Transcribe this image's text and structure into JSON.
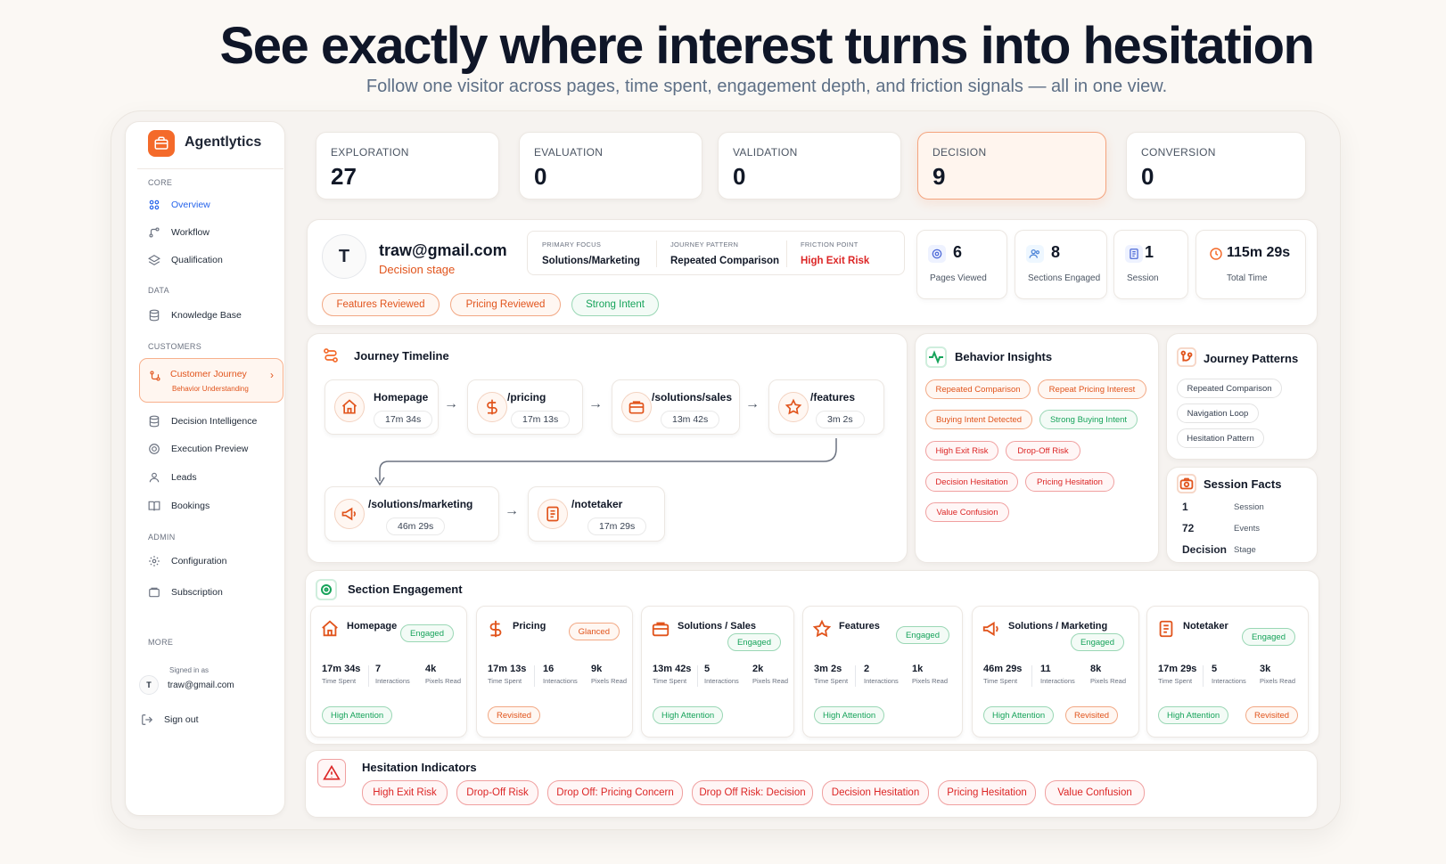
{
  "hero": {
    "title": "See exactly where interest turns into hesitation",
    "subtitle": "Follow one visitor across pages, time spent, engagement depth, and friction signals — all in one view."
  },
  "sidebar": {
    "brand": "Agentlytics",
    "sections": {
      "core": "CORE",
      "data": "DATA",
      "customers": "CUSTOMERS",
      "admin": "ADMIN",
      "more": "MORE"
    },
    "items": {
      "overview": "Overview",
      "workflow": "Workflow",
      "qualification": "Qualification",
      "knowledge_base": "Knowledge Base",
      "customer_journey": "Customer Journey",
      "customer_journey_sub": "Behavior Understanding",
      "decision_intelligence": "Decision Intelligence",
      "execution_preview": "Execution Preview",
      "leads": "Leads",
      "bookings": "Bookings",
      "configuration": "Configuration",
      "subscription": "Subscription"
    },
    "signed_in_label": "Signed in as",
    "user_initial": "T",
    "user_email": "traw@gmail.com",
    "sign_out": "Sign out"
  },
  "stages": [
    {
      "label": "EXPLORATION",
      "value": "27"
    },
    {
      "label": "EVALUATION",
      "value": "0"
    },
    {
      "label": "VALIDATION",
      "value": "0"
    },
    {
      "label": "DECISION",
      "value": "9"
    },
    {
      "label": "CONVERSION",
      "value": "0"
    }
  ],
  "profile": {
    "initial": "T",
    "email": "traw@gmail.com",
    "stage": "Decision stage",
    "primary_focus_label": "PRIMARY FOCUS",
    "primary_focus": "Solutions/Marketing",
    "journey_pattern_label": "JOURNEY PATTERN",
    "journey_pattern": "Repeated Comparison",
    "friction_point_label": "FRICTION POINT",
    "friction_point": "High Exit Risk",
    "tags": [
      "Features Reviewed",
      "Pricing Reviewed",
      "Strong Intent"
    ]
  },
  "kpis": [
    {
      "value": "6",
      "label": "Pages Viewed",
      "icon": "eye-icon"
    },
    {
      "value": "8",
      "label": "Sections Engaged",
      "icon": "users-icon"
    },
    {
      "value": "1",
      "label": "Session",
      "icon": "document-icon"
    },
    {
      "value": "115m 29s",
      "label": "Total Time",
      "icon": "clock-icon"
    }
  ],
  "timeline": {
    "title": "Journey Timeline",
    "nodes": [
      {
        "name": "Homepage",
        "time": "17m 34s",
        "icon": "home-icon"
      },
      {
        "name": "/pricing",
        "time": "17m 13s",
        "icon": "dollar-icon"
      },
      {
        "name": "/solutions/sales",
        "time": "13m 42s",
        "icon": "briefcase-icon"
      },
      {
        "name": "/features",
        "time": "3m 2s",
        "icon": "star-icon"
      },
      {
        "name": "/solutions/marketing",
        "time": "46m 29s",
        "icon": "megaphone-icon"
      },
      {
        "name": "/notetaker",
        "time": "17m 29s",
        "icon": "notes-icon"
      }
    ]
  },
  "behavior": {
    "title": "Behavior Insights",
    "pills": [
      "Repeated Comparison",
      "Repeat Pricing Interest",
      "Buying Intent Detected",
      "Strong Buying Intent",
      "High Exit Risk",
      "Drop-Off Risk",
      "Decision Hesitation",
      "Pricing Hesitation",
      "Value Confusion"
    ]
  },
  "patterns": {
    "title": "Journey Patterns",
    "items": [
      "Repeated Comparison",
      "Navigation Loop",
      "Hesitation Pattern"
    ]
  },
  "facts": {
    "title": "Session Facts",
    "rows": [
      {
        "value": "1",
        "label": "Session"
      },
      {
        "value": "72",
        "label": "Events"
      },
      {
        "value": "Decision",
        "label": "Stage"
      }
    ]
  },
  "engagement": {
    "title": "Section Engagement",
    "stat_labels": {
      "time": "Time Spent",
      "interactions": "Interactions",
      "pixels": "Pixels Read"
    },
    "cards": [
      {
        "name": "Homepage",
        "status": "Engaged",
        "time": "17m 34s",
        "interactions": "7",
        "pixels": "4k",
        "tags": [
          "High Attention"
        ],
        "icon": "home-icon"
      },
      {
        "name": "Pricing",
        "status": "Glanced",
        "time": "17m 13s",
        "interactions": "16",
        "pixels": "9k",
        "tags": [
          "Revisited"
        ],
        "icon": "dollar-icon"
      },
      {
        "name": "Solutions / Sales",
        "status": "Engaged",
        "time": "13m 42s",
        "interactions": "5",
        "pixels": "2k",
        "tags": [
          "High Attention"
        ],
        "icon": "briefcase-icon"
      },
      {
        "name": "Features",
        "status": "Engaged",
        "time": "3m 2s",
        "interactions": "2",
        "pixels": "1k",
        "tags": [
          "High Attention"
        ],
        "icon": "star-icon"
      },
      {
        "name": "Solutions / Marketing",
        "status": "Engaged",
        "time": "46m 29s",
        "interactions": "11",
        "pixels": "8k",
        "tags": [
          "High Attention",
          "Revisited"
        ],
        "icon": "megaphone-icon"
      },
      {
        "name": "Notetaker",
        "status": "Engaged",
        "time": "17m 29s",
        "interactions": "5",
        "pixels": "3k",
        "tags": [
          "High Attention",
          "Revisited"
        ],
        "icon": "notes-icon"
      }
    ]
  },
  "hesitation": {
    "title": "Hesitation Indicators",
    "pills": [
      "High Exit Risk",
      "Drop-Off Risk",
      "Drop Off: Pricing Concern",
      "Drop Off Risk: Decision",
      "Decision Hesitation",
      "Pricing Hesitation",
      "Value Confusion"
    ]
  },
  "colors": {
    "accent": "#f46a2a",
    "danger": "#dc2626",
    "success": "#16a35a",
    "link": "#2563eb"
  }
}
